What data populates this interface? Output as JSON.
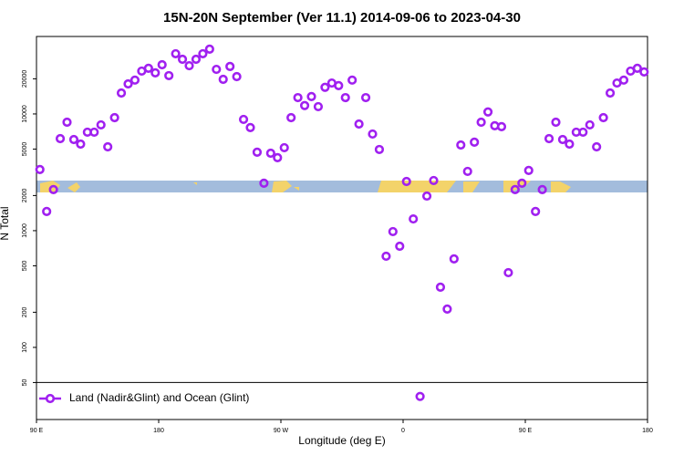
{
  "chart_data": {
    "type": "scatter",
    "title": "15N-20N September (Ver 11.1)   2014-09-06 to 2023-04-30",
    "x_label": "Longitude (deg E)",
    "y_label": "N Total",
    "log_y": true,
    "legend": "bottom-left",
    "xlim": [
      90,
      540
    ],
    "xticks": [
      {
        "value": 90,
        "label": "90 E"
      },
      180,
      {
        "value": 270,
        "label": "90 W"
      },
      {
        "value": 360,
        "label": "0"
      },
      {
        "value": 450,
        "label": "90 E"
      },
      {
        "value": 540,
        "label": "180"
      }
    ],
    "ylim": [
      24.1,
      46100
    ],
    "yticks": [
      50,
      100,
      200,
      500,
      1000,
      2000,
      5000,
      10000,
      20000
    ],
    "x": [
      92.5,
      97.5,
      102.5,
      107.5,
      112.5,
      117.5,
      122.5,
      127.5,
      132.5,
      137.5,
      142.5,
      147.5,
      152.5,
      157.5,
      162.5,
      167.5,
      172.5,
      177.5,
      182.5,
      187.5,
      192.5,
      197.5,
      202.5,
      207.5,
      212.5,
      217.5,
      222.5,
      227.5,
      232.5,
      237.5,
      242.5,
      247.5,
      252.5,
      257.5,
      262.5,
      267.5,
      272.5,
      277.5,
      282.5,
      287.5,
      292.5,
      297.5,
      302.5,
      307.5,
      312.5,
      317.5,
      322.5,
      327.5,
      332.5,
      337.5,
      342.5,
      347.5,
      352.5,
      357.5,
      362.5,
      367.5,
      372.5,
      377.5,
      382.5,
      387.5,
      392.5,
      397.5,
      402.5,
      407.5,
      412.5,
      417.5,
      422.5,
      427.5,
      432.5,
      437.5,
      442.5,
      447.5,
      452.5,
      457.5,
      462.5,
      467.5,
      472.5,
      477.5,
      482.5,
      487.5,
      492.5,
      497.5,
      502.5,
      507.5,
      512.5,
      517.5,
      522.5,
      527.5,
      532.5,
      537.5
    ],
    "series": [
      {
        "name": "Land (Nadir&Glint) and Ocean (Glint)",
        "color": "#a020f0",
        "values": [
          3340,
          1460,
          2250,
          6150,
          8500,
          6040,
          5520,
          6980,
          6980,
          8060,
          5230,
          9300,
          15100,
          18100,
          19500,
          23300,
          24600,
          22500,
          26400,
          21300,
          32800,
          29400,
          25900,
          29400,
          32800,
          35900,
          24100,
          19800,
          25500,
          20900,
          8980,
          7640,
          4700,
          2550,
          4610,
          4220,
          5140,
          9300,
          13800,
          11800,
          14100,
          11550,
          16900,
          18400,
          17500,
          13800,
          19500,
          8200,
          13800,
          6730,
          4960,
          604,
          982,
          736,
          2640,
          1260,
          38,
          1980,
          2690,
          328,
          213,
          573,
          5420,
          3220,
          5730,
          8500,
          10400,
          7920,
          7780,
          437,
          2250,
          2550,
          3280,
          1460,
          2250,
          6150,
          8500,
          6040,
          5520,
          6980,
          6980,
          8060,
          5230,
          9300,
          15100,
          18400,
          19500,
          23300,
          24600,
          22900
        ]
      }
    ]
  }
}
